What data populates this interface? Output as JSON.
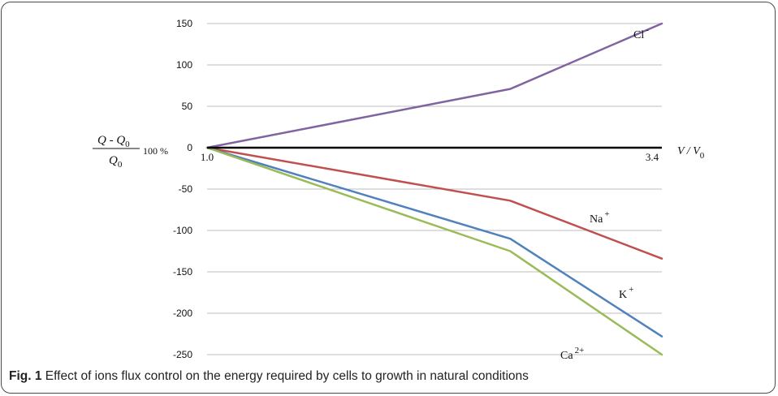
{
  "chart_data": {
    "type": "line",
    "x_start_label": "1.0",
    "x_end_label": "3.4",
    "x_label": {
      "main": "V / V",
      "sub": "0"
    },
    "y_label": {
      "numerator_main": "Q - Q",
      "numerator_sub": "0",
      "denominator_main": "Q",
      "denominator_sub": "0",
      "suffix": "100 %"
    },
    "ylim": [
      -250,
      150
    ],
    "yticks": [
      "150",
      "100",
      "50",
      "0",
      "-50",
      "-100",
      "-150",
      "-200",
      "-250"
    ],
    "x": [
      1.0,
      2.6,
      3.4
    ],
    "series": [
      {
        "name": "Cl",
        "sup": "-",
        "color": "#8064a2",
        "values": [
          0,
          71,
          150
        ]
      },
      {
        "name": "Na",
        "sup": "+",
        "color": "#c0504d",
        "values": [
          0,
          -64,
          -134
        ]
      },
      {
        "name": "K",
        "sup": "+",
        "color": "#4f81bd",
        "values": [
          0,
          -110,
          -228
        ]
      },
      {
        "name": "Ca",
        "sup": "2+",
        "color": "#9bbb59",
        "values": [
          0,
          -125,
          -250
        ]
      }
    ]
  },
  "caption": {
    "label": "Fig. 1",
    "text": "Effect of ions flux control on the energy required by cells to growth in natural conditions"
  }
}
